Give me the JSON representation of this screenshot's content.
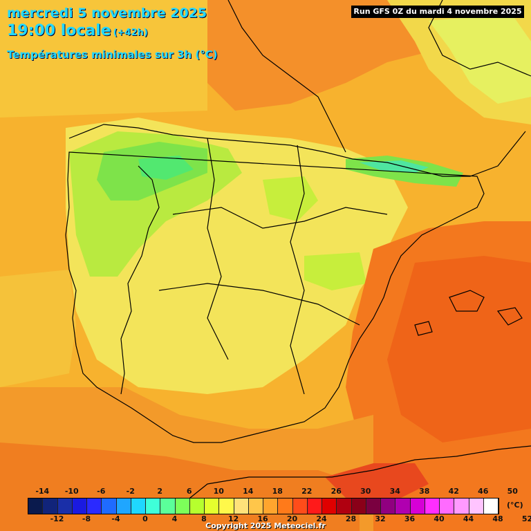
{
  "header": {
    "date_line": "mercredi 5 novembre 2025",
    "time_line": "19:00 locale",
    "lead_time": "(+42h)",
    "subtitle": "Températures minimales sur 3h (°C)",
    "run_info": "Run GFS 0Z du mardi 4 novembre 2025"
  },
  "legend": {
    "top_labels": [
      "-14",
      "-10",
      "-6",
      "-2",
      "2",
      "6",
      "10",
      "14",
      "18",
      "22",
      "26",
      "30",
      "34",
      "38",
      "42",
      "46",
      "50"
    ],
    "bottom_labels": [
      "-12",
      "-8",
      "-4",
      "0",
      "4",
      "8",
      "12",
      "16",
      "20",
      "24",
      "28",
      "32",
      "36",
      "40",
      "44",
      "48",
      "52"
    ],
    "unit": "(°C)",
    "colors": [
      "#0a1a4d",
      "#11247a",
      "#1a2fa8",
      "#1a1ae0",
      "#2a2aff",
      "#1f6bff",
      "#1fa6ff",
      "#1fd7ff",
      "#3fffd9",
      "#5bff9a",
      "#7dff5a",
      "#b6ff2e",
      "#e4ff2e",
      "#fff84a",
      "#ffe27a",
      "#ffc64a",
      "#ffa52e",
      "#ff7a1a",
      "#ff4c1a",
      "#ff1a1a",
      "#e00000",
      "#b00010",
      "#8a0018",
      "#7a0040",
      "#900080",
      "#b000b0",
      "#d600d6",
      "#ff2eff",
      "#ff6bff",
      "#ff9aff",
      "#ffc4ff",
      "#ffffff"
    ]
  },
  "footer": {
    "copyright": "Copyright 2025 Meteociel.fr"
  }
}
